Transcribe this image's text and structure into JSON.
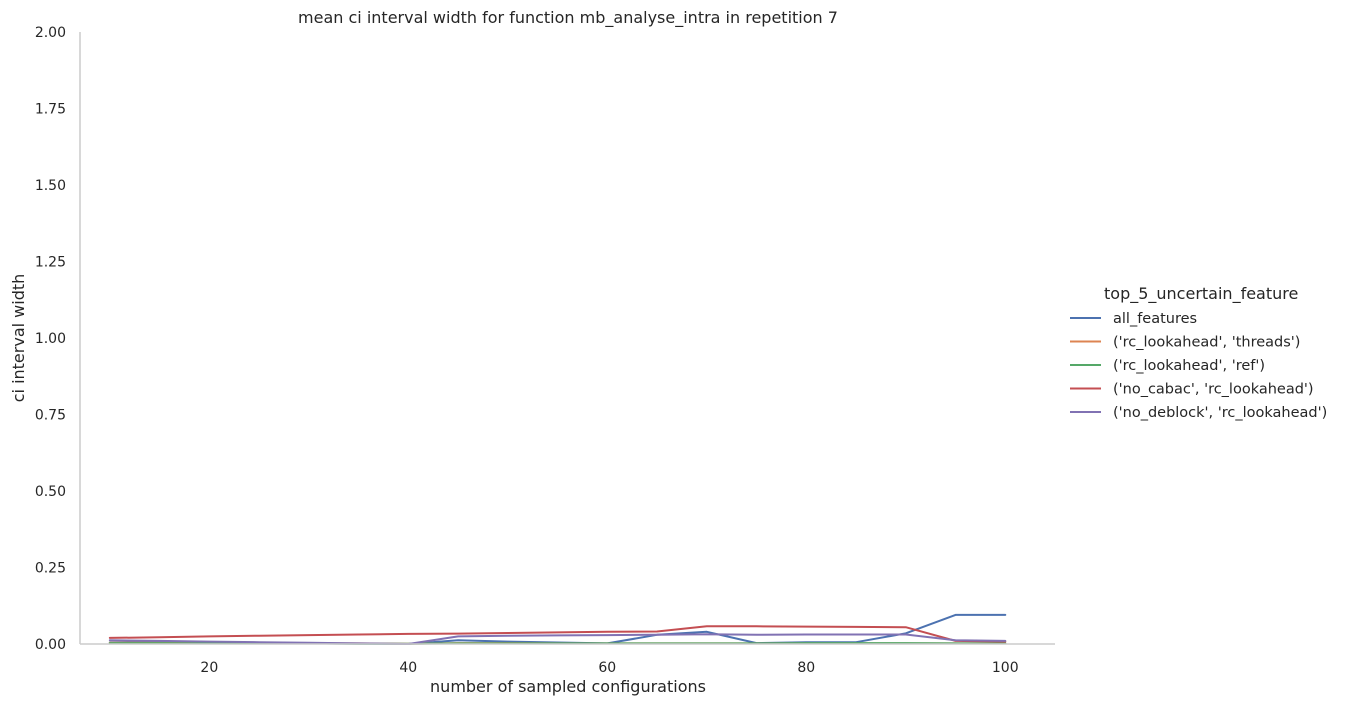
{
  "chart_data": {
    "type": "line",
    "title": "mean ci interval width for function mb_analyse_intra in repetition 7",
    "xlabel": "number of sampled configurations",
    "ylabel": "ci interval width",
    "xlim": [
      7,
      105
    ],
    "ylim": [
      0,
      2
    ],
    "x_ticks": [
      20,
      40,
      60,
      80,
      100
    ],
    "y_ticks": [
      0.0,
      0.25,
      0.5,
      0.75,
      1.0,
      1.25,
      1.5,
      1.75,
      2.0
    ],
    "y_tick_labels": [
      "0.00",
      "0.25",
      "0.50",
      "0.75",
      "1.00",
      "1.25",
      "1.50",
      "1.75",
      "2.00"
    ],
    "grid": false,
    "legend": {
      "title": "top_5_uncertain_feature",
      "placement": "right"
    },
    "x": [
      10,
      15,
      20,
      25,
      30,
      35,
      40,
      45,
      50,
      55,
      60,
      65,
      70,
      75,
      80,
      85,
      90,
      95,
      100
    ],
    "series": [
      {
        "name": "all_features",
        "color": "#4c72b0",
        "values": [
          0.005,
          0.005,
          0.005,
          0.003,
          0.002,
          0.001,
          0.0,
          0.012,
          0.008,
          0.005,
          0.002,
          0.03,
          0.04,
          0.003,
          0.006,
          0.006,
          0.035,
          0.095,
          0.095
        ]
      },
      {
        "name": "('rc_lookahead', 'threads')",
        "color": "#dd8452",
        "values": [
          0.004,
          0.004,
          0.003,
          0.003,
          0.002,
          0.002,
          0.001,
          0.003,
          0.003,
          0.002,
          0.002,
          0.002,
          0.002,
          0.002,
          0.002,
          0.002,
          0.002,
          0.002,
          0.002
        ]
      },
      {
        "name": "('rc_lookahead', 'ref')",
        "color": "#55a868",
        "values": [
          0.003,
          0.003,
          0.002,
          0.002,
          0.002,
          0.001,
          0.001,
          0.002,
          0.002,
          0.002,
          0.002,
          0.002,
          0.002,
          0.002,
          0.003,
          0.003,
          0.003,
          0.002,
          0.002
        ]
      },
      {
        "name": "('no_cabac', 'rc_lookahead')",
        "color": "#c44e52",
        "values": [
          0.02,
          0.022,
          0.025,
          0.027,
          0.029,
          0.031,
          0.033,
          0.034,
          0.036,
          0.038,
          0.04,
          0.041,
          0.058,
          0.058,
          0.057,
          0.056,
          0.055,
          0.01,
          0.008
        ]
      },
      {
        "name": "('no_deblock', 'rc_lookahead')",
        "color": "#8172b3",
        "values": [
          0.012,
          0.01,
          0.008,
          0.006,
          0.004,
          0.002,
          0.0,
          0.025,
          0.027,
          0.028,
          0.029,
          0.03,
          0.032,
          0.03,
          0.031,
          0.031,
          0.031,
          0.012,
          0.01
        ]
      }
    ]
  }
}
